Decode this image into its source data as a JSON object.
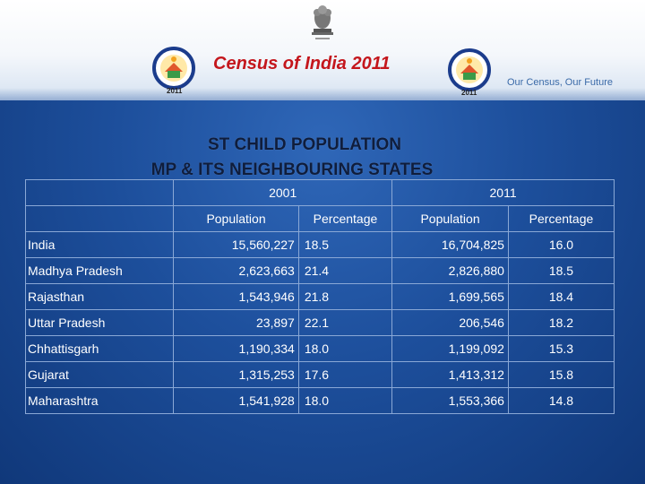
{
  "header": {
    "census_title": "Census of India  2011",
    "tagline": "Our Census,  Our Future",
    "logo_year": "2011"
  },
  "slide": {
    "title_line1": "ST CHILD POPULATION",
    "title_line2": "MP & ITS NEIGHBOURING STATES"
  },
  "table": {
    "years": [
      "2001",
      "2011"
    ],
    "subheaders": [
      "Population",
      "Percentage",
      "Population",
      "Percentage"
    ],
    "rows": [
      {
        "state": "India",
        "pop2001": "15,560,227",
        "pct2001": "18.5",
        "pop2011": "16,704,825",
        "pct2011": "16.0"
      },
      {
        "state": "Madhya Pradesh",
        "pop2001": "2,623,663",
        "pct2001": "21.4",
        "pop2011": "2,826,880",
        "pct2011": "18.5"
      },
      {
        "state": "Rajasthan",
        "pop2001": "1,543,946",
        "pct2001": "21.8",
        "pop2011": "1,699,565",
        "pct2011": "18.4"
      },
      {
        "state": "Uttar Pradesh",
        "pop2001": "23,897",
        "pct2001": "22.1",
        "pop2011": "206,546",
        "pct2011": "18.2"
      },
      {
        "state": "Chhattisgarh",
        "pop2001": "1,190,334",
        "pct2001": "18.0",
        "pop2011": "1,199,092",
        "pct2011": "15.3"
      },
      {
        "state": "Gujarat",
        "pop2001": "1,315,253",
        "pct2001": "17.6",
        "pop2011": "1,413,312",
        "pct2011": "15.8"
      },
      {
        "state": "Maharashtra",
        "pop2001": "1,541,928",
        "pct2001": "18.0",
        "pop2011": "1,553,366",
        "pct2011": "14.8"
      }
    ]
  },
  "icons": [
    "national-emblem-icon",
    "census-logo-icon"
  ],
  "colors": {
    "census_title": "#c4161c",
    "background": "#1d4f9c",
    "slide_title": "#0f1d3c"
  }
}
